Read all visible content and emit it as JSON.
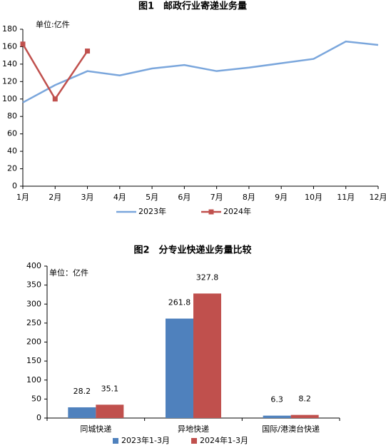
{
  "chart_data": [
    {
      "type": "line",
      "title": "图1　邮政行业寄递业务量",
      "annotation": "单位:亿件",
      "categories": [
        "1月",
        "2月",
        "3月",
        "4月",
        "5月",
        "6月",
        "7月",
        "8月",
        "9月",
        "10月",
        "11月",
        "12月"
      ],
      "series": [
        {
          "name": "2023年",
          "color": "#7aa6dc",
          "values": [
            96,
            116,
            132,
            127,
            135,
            139,
            132,
            136,
            141,
            146,
            166,
            162
          ]
        },
        {
          "name": "2024年",
          "color": "#c0504d",
          "marker": "square",
          "values": [
            163,
            100,
            155,
            null,
            null,
            null,
            null,
            null,
            null,
            null,
            null,
            null
          ]
        }
      ],
      "ylim": [
        0,
        180
      ],
      "yticks": [
        0,
        20,
        40,
        60,
        80,
        100,
        120,
        140,
        160,
        180
      ],
      "grid": false,
      "legend": "bottom"
    },
    {
      "type": "bar",
      "title": "图2　分专业快递业务量比较",
      "annotation": "单位：亿件",
      "categories": [
        "同城快递",
        "异地快递",
        "国际/港澳台快递"
      ],
      "series": [
        {
          "name": "2023年1-3月",
          "color": "#4f81bd",
          "values": [
            28.2,
            261.8,
            6.3
          ]
        },
        {
          "name": "2024年1-3月",
          "color": "#c0504d",
          "values": [
            35.1,
            327.8,
            8.2
          ]
        }
      ],
      "ylim": [
        0,
        400
      ],
      "yticks": [
        0,
        50,
        100,
        150,
        200,
        250,
        300,
        350,
        400
      ],
      "grid": false,
      "legend": "bottom"
    }
  ]
}
